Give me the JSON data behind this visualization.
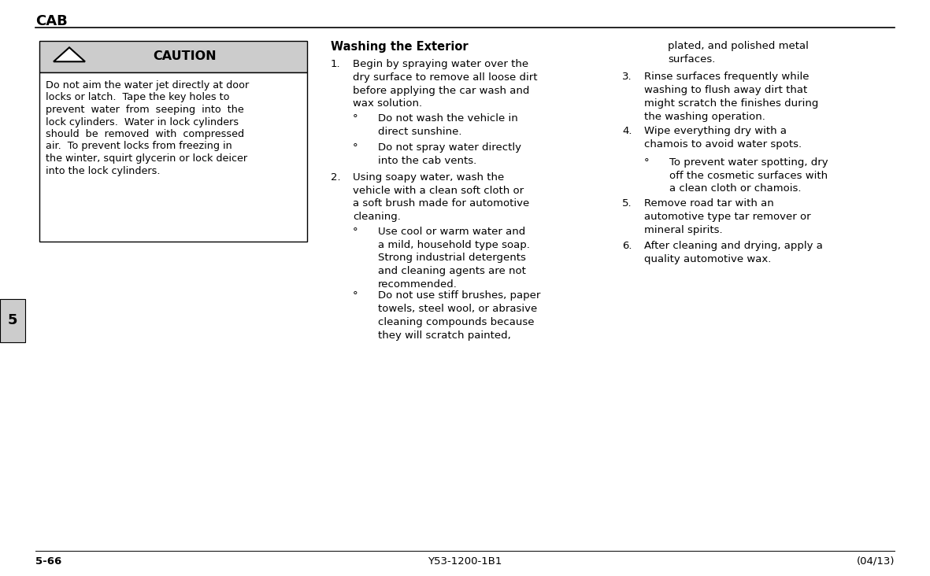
{
  "bg_color": "#ffffff",
  "header_text": "CAB",
  "caution_header_bg": "#cccccc",
  "caution_header_text": "CAUTION",
  "caution_body_lines": [
    "Do not aim the water jet directly at door",
    "locks or latch.  Tape the key holes to",
    "prevent  water  from  seeping  into  the",
    "lock cylinders.  Water in lock cylinders",
    "should  be  removed  with  compressed",
    "air.  To prevent locks from freezing in",
    "the winter, squirt glycerin or lock deicer",
    "into the lock cylinders."
  ],
  "section_tab_text": "5",
  "section_tab_bg": "#cccccc",
  "section_title": "Washing the Exterior",
  "col2_items": [
    {
      "num": "1.",
      "text": "Begin by spraying water over the\ndry surface to remove all loose dirt\nbefore applying the car wash and\nwax solution.",
      "indent": false
    },
    {
      "num": "°",
      "text": "Do not wash the vehicle in\ndirect sunshine.",
      "indent": true
    },
    {
      "num": "°",
      "text": "Do not spray water directly\ninto the cab vents.",
      "indent": true
    },
    {
      "num": "2.",
      "text": "Using soapy water, wash the\nvehicle with a clean soft cloth or\na soft brush made for automotive\ncleaning.",
      "indent": false
    },
    {
      "num": "°",
      "text": "Use cool or warm water and\na mild, household type soap.\nStrong industrial detergents\nand cleaning agents are not\nrecommended.",
      "indent": true
    },
    {
      "num": "°",
      "text": "Do not use stiff brushes, paper\ntowels, steel wool, or abrasive\ncleaning compounds because\nthey will scratch painted,",
      "indent": true
    }
  ],
  "col3_items": [
    {
      "num": "",
      "text": "plated, and polished metal\nsurfaces.",
      "continuation": true
    },
    {
      "num": "3.",
      "text": "Rinse surfaces frequently while\nwashing to flush away dirt that\nmight scratch the finishes during\nthe washing operation.",
      "indent": false
    },
    {
      "num": "4.",
      "text": "Wipe everything dry with a\nchamois to avoid water spots.",
      "indent": false
    },
    {
      "num": "°",
      "text": "To prevent water spotting, dry\noff the cosmetic surfaces with\na clean cloth or chamois.",
      "indent": true
    },
    {
      "num": "5.",
      "text": "Remove road tar with an\nautomotive type tar remover or\nmineral spirits.",
      "indent": false
    },
    {
      "num": "6.",
      "text": "After cleaning and drying, apply a\nquality automotive wax.",
      "indent": false
    }
  ],
  "footer_left": "5-66",
  "footer_center": "Y53-1200-1B1",
  "footer_right": "(04/13)"
}
